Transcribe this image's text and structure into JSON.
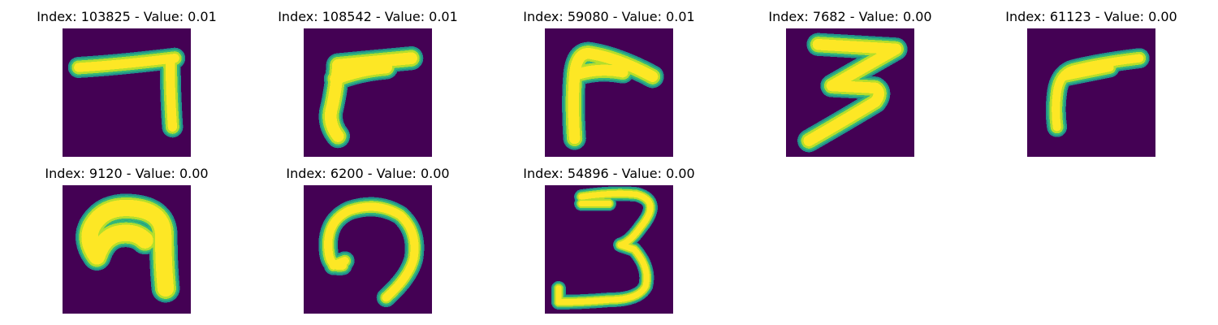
{
  "colors": {
    "background": "#440154",
    "stroke": "#fde725",
    "edge_1": "#b5de2b",
    "edge_2": "#35b779",
    "edge_3": "#21918c"
  },
  "panels": [
    {
      "title": "Index: 103825 - Value: 0.01",
      "digit": "7-shape"
    },
    {
      "title": "Index: 108542 - Value: 0.01",
      "digit": "7-shape"
    },
    {
      "title": "Index: 59080 - Value: 0.01",
      "digit": "7-shape"
    },
    {
      "title": "Index: 7682 - Value: 0.00",
      "digit": "3-shape"
    },
    {
      "title": "Index: 61123 - Value: 0.00",
      "digit": "7-shape"
    },
    {
      "title": "Index: 9120 - Value: 0.00",
      "digit": "arch-shape"
    },
    {
      "title": "Index: 6200 - Value: 0.00",
      "digit": "arch-shape"
    },
    {
      "title": "Index: 54896 - Value: 0.00",
      "digit": "3-shape"
    }
  ]
}
